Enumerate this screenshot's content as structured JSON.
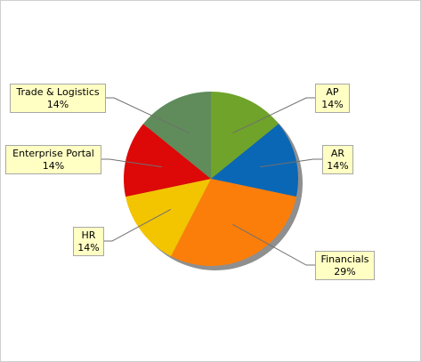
{
  "chart_data": {
    "type": "pie",
    "title": "",
    "slices": [
      {
        "name": "AP",
        "percent": 14,
        "label_pct": "14%",
        "color": "#6fa32a"
      },
      {
        "name": "AR",
        "percent": 14,
        "label_pct": "14%",
        "color": "#0a67b5"
      },
      {
        "name": "Financials",
        "percent": 29,
        "label_pct": "29%",
        "color": "#fb7e0a"
      },
      {
        "name": "HR",
        "percent": 14,
        "label_pct": "14%",
        "color": "#f3c400"
      },
      {
        "name": "Enterprise Portal",
        "percent": 14,
        "label_pct": "14%",
        "color": "#dd0808"
      },
      {
        "name": "Trade & Logistics",
        "percent": 14,
        "label_pct": "14%",
        "color": "#5f8c5a"
      }
    ],
    "shadow_color": "#8f8f8f",
    "label_background": "#ffffc4",
    "legend": "none"
  }
}
